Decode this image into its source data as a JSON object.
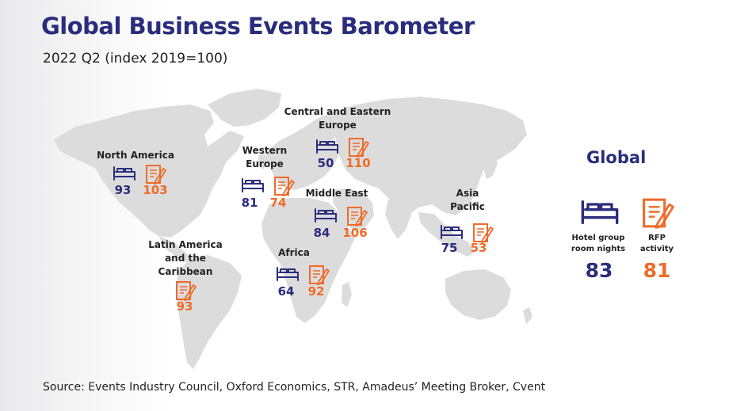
{
  "title": "Global Business Events Barometer",
  "subtitle": "2022 Q2 (index 2019=100)",
  "colors": {
    "title": "#2a2d7c",
    "hotel": "#2a2d7c",
    "rfp": "#ef6b2a",
    "land": "#dcdcdc"
  },
  "icons": {
    "hotel": "bed-icon",
    "rfp": "document-pen-icon"
  },
  "regions": [
    {
      "name": "North America",
      "hotel": "93",
      "rfp": "103"
    },
    {
      "name": "Western Europe",
      "hotel": "81",
      "rfp": "74"
    },
    {
      "name": "Central and Eastern Europe",
      "hotel": "50",
      "rfp": "110"
    },
    {
      "name": "Middle East",
      "hotel": "84",
      "rfp": "106"
    },
    {
      "name": "Asia Pacific",
      "hotel": "75",
      "rfp": "53"
    },
    {
      "name": "Africa",
      "hotel": "64",
      "rfp": "92"
    },
    {
      "name": "Latin America and the Caribbean",
      "hotel": "",
      "rfp": "93"
    }
  ],
  "global": {
    "title": "Global",
    "hotel_label": "Hotel group room nights",
    "rfp_label": "RFP activity",
    "hotel_value": "83",
    "rfp_value": "81"
  },
  "source": "Source: Events Industry Council, Oxford Economics, STR, Amadeus’ Meeting Broker, Cvent"
}
